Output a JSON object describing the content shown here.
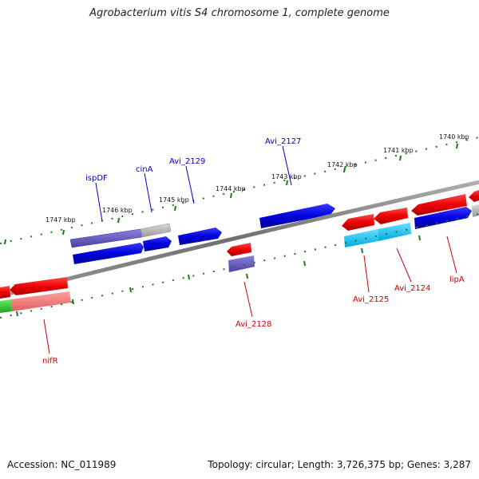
{
  "title": "Agrobacterium vitis S4 chromosome 1, complete genome",
  "footer": {
    "accession": "Accession: NC_011989",
    "topology": "Topology: circular; Length: 3,726,375 bp; Genes: 3,287"
  },
  "colors": {
    "forward_gene": "#0000dd",
    "reverse_gene": "#ee0000",
    "backbone": "#808080",
    "ticks": "#1a7a1a",
    "forward_label": "#0000cc",
    "reverse_label": "#cc0000"
  },
  "tick_labels": [
    "1747 kbp",
    "1746 kbp",
    "1745 kbp",
    "1744 kbp",
    "1743 kbp",
    "1742 kbp",
    "1741 kbp",
    "1740 kbp"
  ],
  "gene_labels": {
    "forward": [
      "ispDF",
      "cinA",
      "Avi_2129",
      "Avi_2127"
    ],
    "reverse": [
      "nifR",
      "Avi_2128",
      "Avi_2125",
      "Avi_2124",
      "lipA"
    ]
  }
}
